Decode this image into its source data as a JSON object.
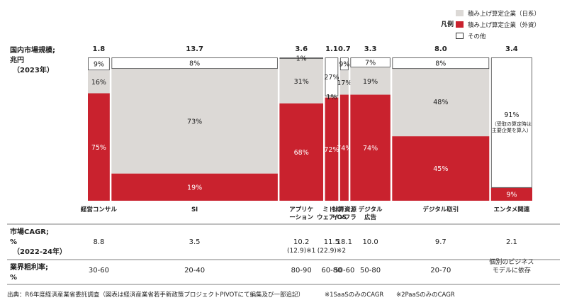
{
  "legend": {
    "title": "凡例",
    "items": [
      {
        "label": "積み上げ算定企業（日系）",
        "color": "#dcd9d6"
      },
      {
        "label": "積み上げ算定企業（外資）",
        "color": "#c9222e"
      },
      {
        "label": "その他",
        "color": "#ffffff"
      }
    ]
  },
  "row_labels": {
    "market": [
      "国内市場規模;",
      "兆円",
      "（2023年）"
    ],
    "cagr": [
      "市場CAGR;",
      "%",
      "（2022-24年）"
    ],
    "margin": [
      "業界粗利率;",
      "%"
    ]
  },
  "chart_data": {
    "type": "marimekko",
    "unit_width": "兆円",
    "unit_height": "%",
    "segments": [
      "積み上げ算定企業（外資）",
      "積み上げ算定企業（日系）",
      "その他"
    ],
    "categories": [
      {
        "name": "経営コンサル",
        "size": "1.8",
        "width": 1.8,
        "foreign": 75,
        "domestic": 16,
        "other": 9,
        "labels": {
          "foreign": "75%",
          "domestic": "16%",
          "other": "9%"
        },
        "cagr": [
          "8.8"
        ],
        "margin": [
          "30-60"
        ]
      },
      {
        "name": "SI",
        "size": "13.7",
        "width": 13.7,
        "foreign": 19,
        "domestic": 73,
        "other": 8,
        "labels": {
          "foreign": "19%",
          "domestic": "73%",
          "other": "8%"
        },
        "cagr": [
          "3.5"
        ],
        "margin": [
          "20-40"
        ]
      },
      {
        "name": "アプリケーション",
        "display": [
          "アプリケ",
          "ーション"
        ],
        "size": "3.6",
        "width": 3.6,
        "foreign": 68,
        "domestic": 31,
        "other": 1,
        "labels": {
          "foreign": "68%",
          "domestic": "31%",
          "other": "1%"
        },
        "cagr": [
          "10.2",
          "(12.9)※1"
        ],
        "margin": [
          "80-90"
        ]
      },
      {
        "name": "ミドルウェア/OS",
        "display": [
          "ミドル",
          "ウェア/OS"
        ],
        "size": "1.1",
        "width": 1.1,
        "foreign": 72,
        "domestic": 1,
        "other": 27,
        "labels": {
          "foreign": "72%",
          "domestic": "1%",
          "other": "27%"
        },
        "cagr": [
          "11.5",
          "(22.9)※2"
        ],
        "margin": [
          "60-80"
        ]
      },
      {
        "name": "計算資源インフラ",
        "display": [
          "計算資源",
          "インフラ"
        ],
        "size": "0.7",
        "width": 0.7,
        "foreign": 74,
        "domestic": 17,
        "other": 9,
        "labels": {
          "foreign": "74%",
          "domestic": "17%",
          "other": "9%"
        },
        "cagr": [
          "18.1"
        ],
        "margin": [
          "50-60"
        ]
      },
      {
        "name": "デジタル広告",
        "display": [
          "デジタル",
          "広告"
        ],
        "size": "3.3",
        "width": 3.3,
        "foreign": 74,
        "domestic": 19,
        "other": 7,
        "labels": {
          "foreign": "74%",
          "domestic": "19%",
          "other": "7%"
        },
        "cagr": [
          "10.0"
        ],
        "margin": [
          "50-80"
        ]
      },
      {
        "name": "デジタル取引",
        "size": "8.0",
        "width": 8.0,
        "foreign": 45,
        "domestic": 48,
        "other": 8,
        "labels": {
          "foreign": "45%",
          "domestic": "48%",
          "other": "8%"
        },
        "cagr": [
          "9.7"
        ],
        "margin": [
          "20-70"
        ]
      },
      {
        "name": "エンタメ関連",
        "size": "3.4",
        "width": 3.4,
        "foreign": 9,
        "domestic": 0,
        "other": 91,
        "labels": {
          "foreign": "9%",
          "domestic": "",
          "other": "91%"
        },
        "other_note": [
          "（受取の算定時は",
          "主要企業を算入）"
        ],
        "cagr": [
          "2.1"
        ],
        "margin": [
          "個別のビジネス",
          "モデルに依存"
        ]
      }
    ]
  },
  "footnote": {
    "source": "出典：R6年度経済産業省委託調査（図表は経済産業省若手新政策プロジェクトPIVOTにて編集及び一部追記）",
    "note1": "※1SaaSのみのCAGR",
    "note2": "※2PaaSのみのCAGR"
  }
}
